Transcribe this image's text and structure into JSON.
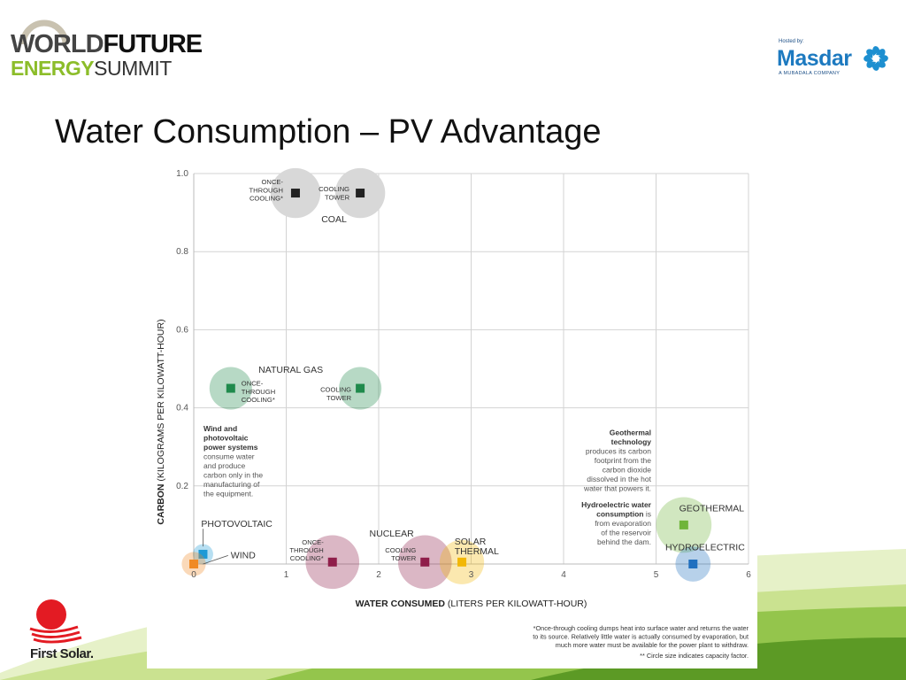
{
  "header": {
    "wfes": {
      "word_world": "WORLD",
      "word_future": "FUTURE",
      "word_energy": "ENERGY",
      "word_summit": "SUMMIT"
    },
    "masdar": {
      "hosted_by": "Hosted by:",
      "name": "Masdar",
      "subtitle": "A MUBADALA COMPANY"
    }
  },
  "slide": {
    "title": "Water Consumption – PV Advantage"
  },
  "footer": {
    "first_solar": "First Solar."
  },
  "colors": {
    "coal": "#222222",
    "natural_gas": "#1f8a4c",
    "nuclear": "#8f1e4a",
    "solar_thermal": "#f2b705",
    "photovoltaic": "#1e9ad6",
    "wind": "#f08a24",
    "geothermal": "#6fb53a",
    "hydroelectric": "#1f6fbf",
    "bubble_gray": "#d8d8d8"
  },
  "chart_data": {
    "type": "scatter",
    "xlabel_bold": "WATER CONSUMED",
    "xlabel_rest": "(LITERS PER KILOWATT-HOUR)",
    "ylabel_bold": "CARBON",
    "ylabel_rest": "(KILOGRAMS PER KILOWATT-HOUR)",
    "xlim": [
      0,
      6
    ],
    "ylim": [
      0,
      1.0
    ],
    "x_ticks": [
      "0",
      "1",
      "2",
      "3",
      "4",
      "5",
      "6"
    ],
    "y_ticks": [
      "0.2",
      "0.4",
      "0.6",
      "0.8",
      "1.0"
    ],
    "grid": true,
    "groups": [
      {
        "name": "COAL",
        "points": [
          {
            "label": [
              "ONCE-",
              "THROUGH",
              "COOLING*"
            ],
            "x": 1.1,
            "y": 0.95,
            "r": 0.27,
            "color_key": "coal"
          },
          {
            "label": [
              "COOLING",
              "TOWER"
            ],
            "x": 1.8,
            "y": 0.95,
            "r": 0.27,
            "color_key": "coal"
          }
        ]
      },
      {
        "name": "NATURAL GAS",
        "points": [
          {
            "label": [
              "ONCE-",
              "THROUGH",
              "COOLING*"
            ],
            "x": 0.4,
            "y": 0.45,
            "r": 0.23,
            "color_key": "natural_gas"
          },
          {
            "label": [
              "COOLING",
              "TOWER"
            ],
            "x": 1.8,
            "y": 0.45,
            "r": 0.23,
            "color_key": "natural_gas"
          }
        ]
      },
      {
        "name": "NUCLEAR",
        "points": [
          {
            "label": [
              "ONCE-",
              "THROUGH",
              "COOLING*"
            ],
            "x": 1.5,
            "y": 0.005,
            "r": 0.29,
            "color_key": "nuclear"
          },
          {
            "label": [
              "COOLING",
              "TOWER"
            ],
            "x": 2.5,
            "y": 0.005,
            "r": 0.29,
            "color_key": "nuclear"
          }
        ]
      },
      {
        "name": "SOLAR THERMAL",
        "name_lines": [
          "SOLAR",
          "THERMAL"
        ],
        "points": [
          {
            "label": [],
            "x": 2.9,
            "y": 0.005,
            "r": 0.24,
            "color_key": "solar_thermal"
          }
        ]
      },
      {
        "name": "PHOTOVOLTAIC",
        "points": [
          {
            "label": [],
            "x": 0.1,
            "y": 0.025,
            "r": 0.11,
            "color_key": "photovoltaic"
          }
        ]
      },
      {
        "name": "WIND",
        "points": [
          {
            "label": [],
            "x": 0.0,
            "y": 0.0,
            "r": 0.13,
            "color_key": "wind"
          }
        ]
      },
      {
        "name": "GEOTHERMAL",
        "points": [
          {
            "label": [],
            "x": 5.3,
            "y": 0.1,
            "r": 0.3,
            "color_key": "geothermal"
          }
        ]
      },
      {
        "name": "HYDROELECTRIC",
        "points": [
          {
            "label": [],
            "x": 5.4,
            "y": 0.0,
            "r": 0.19,
            "color_key": "hydroelectric"
          }
        ]
      }
    ],
    "annotations": {
      "wind_pv": {
        "head": [
          "Wind and",
          "photovoltaic",
          "power systems"
        ],
        "body": [
          "consume water",
          "and produce",
          "carbon only in the",
          "manufacturing of",
          "the equipment."
        ]
      },
      "geothermal": {
        "head": [
          "Geothermal",
          "technology"
        ],
        "body": [
          "produces its carbon",
          "footprint from the",
          "carbon dioxide",
          "dissolved in the hot",
          "water that powers it."
        ]
      },
      "hydroelectric": {
        "head": [
          "Hydroelectric water",
          "consumption"
        ],
        "head_tail": " is",
        "body": [
          "from evaporation",
          "of the reservoir",
          "behind the dam."
        ]
      }
    },
    "footnotes": [
      "*Once-through cooling dumps heat into surface water and returns the water",
      "to its source. Relatively little water is actually consumed by evaporation, but",
      "much more water must be available for the power plant to withdraw.",
      "** Circle size indicates capacity factor."
    ]
  }
}
